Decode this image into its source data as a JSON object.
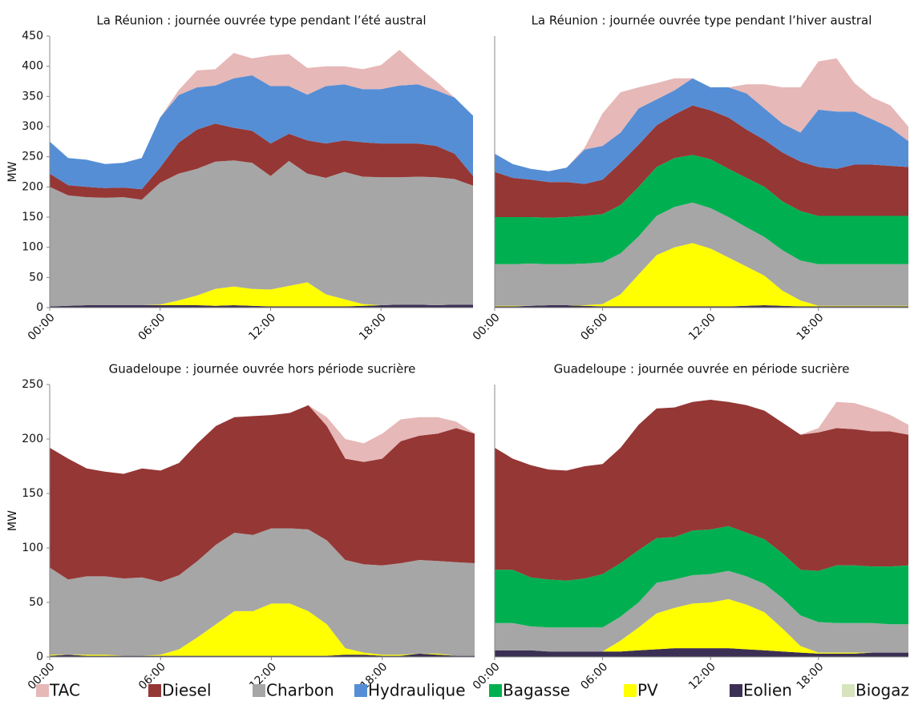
{
  "legend": [
    {
      "name": "TAC",
      "color": "#e6b8b7"
    },
    {
      "name": "Diesel",
      "color": "#953735"
    },
    {
      "name": "Charbon",
      "color": "#a6a6a6"
    },
    {
      "name": "Hydraulique",
      "color": "#558ed5"
    },
    {
      "name": "Bagasse",
      "color": "#00b050"
    },
    {
      "name": "PV",
      "color": "#ffff00"
    },
    {
      "name": "Eolien",
      "color": "#3b2f54"
    },
    {
      "name": "Biogaz",
      "color": "#d7e4bd"
    }
  ],
  "chart_data": [
    {
      "type": "stacked_area",
      "title": "La Réunion : journée ouvrée type pendant l’été austral",
      "ylabel": "MW",
      "x": [
        0,
        1,
        2,
        3,
        4,
        5,
        6,
        7,
        8,
        9,
        10,
        11,
        12,
        13,
        14,
        15,
        16,
        17,
        18,
        19,
        20,
        21,
        22,
        23
      ],
      "xlim": [
        0,
        23
      ],
      "xticks": [
        {
          "value": 0,
          "label": "00:00"
        },
        {
          "value": 6,
          "label": "06:00"
        },
        {
          "value": 12,
          "label": "12:00"
        },
        {
          "value": 18,
          "label": "18:00"
        }
      ],
      "ylim": [
        0,
        450
      ],
      "yticks": [
        0,
        50,
        100,
        150,
        200,
        250,
        300,
        350,
        400,
        450
      ],
      "series": [
        {
          "name": "Eolien",
          "values": [
            2,
            3,
            4,
            4,
            4,
            4,
            4,
            4,
            4,
            3,
            4,
            3,
            2,
            2,
            2,
            2,
            2,
            3,
            4,
            5,
            5,
            4,
            5,
            5
          ]
        },
        {
          "name": "PV",
          "values": [
            0,
            0,
            0,
            0,
            0,
            0,
            1,
            8,
            16,
            28,
            31,
            28,
            28,
            34,
            40,
            20,
            12,
            3,
            0,
            0,
            0,
            0,
            0,
            0
          ]
        },
        {
          "name": "Charbon",
          "values": [
            198,
            183,
            179,
            178,
            179,
            175,
            202,
            210,
            210,
            211,
            209,
            209,
            188,
            207,
            180,
            193,
            211,
            211,
            212,
            211,
            212,
            212,
            208,
            197
          ]
        },
        {
          "name": "Diesel",
          "values": [
            22,
            17,
            17,
            16,
            16,
            17,
            25,
            51,
            65,
            63,
            54,
            53,
            54,
            45,
            55,
            57,
            52,
            57,
            56,
            56,
            55,
            52,
            42,
            16
          ]
        },
        {
          "name": "Hydraulique",
          "values": [
            53,
            45,
            45,
            40,
            41,
            52,
            83,
            79,
            70,
            63,
            82,
            92,
            95,
            79,
            76,
            95,
            93,
            88,
            90,
            96,
            98,
            92,
            93,
            100
          ]
        },
        {
          "name": "TAC",
          "values": [
            0,
            0,
            0,
            0,
            0,
            0,
            0,
            8,
            28,
            27,
            42,
            28,
            51,
            53,
            44,
            33,
            30,
            33,
            40,
            59,
            30,
            15,
            0,
            0
          ]
        }
      ]
    },
    {
      "type": "stacked_area",
      "title": "La Réunion : journée ouvrée type pendant l’hiver austral",
      "x": [
        0,
        1,
        2,
        3,
        4,
        5,
        6,
        7,
        8,
        9,
        10,
        11,
        12,
        13,
        14,
        15,
        16,
        17,
        18,
        19,
        20,
        21,
        22,
        23
      ],
      "xlim": [
        0,
        23
      ],
      "xticks": [
        {
          "value": 0,
          "label": "00:00"
        },
        {
          "value": 6,
          "label": "06:00"
        },
        {
          "value": 12,
          "label": "12:00"
        },
        {
          "value": 18,
          "label": "18:00"
        }
      ],
      "ylim": [
        0,
        450
      ],
      "series": [
        {
          "name": "Eolien",
          "values": [
            2,
            2,
            3,
            4,
            4,
            3,
            2,
            2,
            2,
            2,
            2,
            2,
            2,
            2,
            3,
            4,
            3,
            2,
            2,
            2,
            2,
            2,
            2,
            2
          ]
        },
        {
          "name": "PV",
          "values": [
            1,
            1,
            0,
            0,
            0,
            1,
            4,
            20,
            53,
            85,
            98,
            105,
            96,
            81,
            65,
            49,
            25,
            10,
            1,
            1,
            1,
            1,
            1,
            1
          ]
        },
        {
          "name": "Charbon",
          "values": [
            69,
            69,
            70,
            68,
            68,
            69,
            69,
            68,
            63,
            65,
            67,
            67,
            67,
            67,
            65,
            64,
            67,
            66,
            69,
            69,
            69,
            69,
            69,
            69
          ]
        },
        {
          "name": "Bagasse",
          "values": [
            78,
            78,
            77,
            77,
            78,
            79,
            80,
            80,
            82,
            81,
            81,
            79,
            81,
            80,
            82,
            83,
            81,
            82,
            80,
            80,
            80,
            80,
            80,
            80
          ]
        },
        {
          "name": "Diesel",
          "values": [
            75,
            65,
            62,
            59,
            58,
            53,
            57,
            70,
            70,
            69,
            72,
            82,
            81,
            85,
            80,
            78,
            81,
            82,
            81,
            78,
            85,
            85,
            83,
            81
          ]
        },
        {
          "name": "Hydraulique",
          "values": [
            30,
            23,
            18,
            18,
            24,
            57,
            56,
            50,
            60,
            43,
            40,
            45,
            38,
            50,
            60,
            52,
            48,
            48,
            95,
            95,
            88,
            75,
            63,
            43
          ]
        },
        {
          "name": "TAC",
          "values": [
            0,
            0,
            0,
            0,
            0,
            3,
            54,
            67,
            35,
            27,
            20,
            0,
            0,
            0,
            15,
            40,
            60,
            75,
            80,
            88,
            47,
            36,
            37,
            24
          ]
        }
      ]
    },
    {
      "type": "stacked_area",
      "title": "Guadeloupe : journée ouvrée hors période sucrière",
      "ylabel": "MW",
      "x": [
        0,
        1,
        2,
        3,
        4,
        5,
        6,
        7,
        8,
        9,
        10,
        11,
        12,
        13,
        14,
        15,
        16,
        17,
        18,
        19,
        20,
        21,
        22,
        23
      ],
      "xlim": [
        0,
        23
      ],
      "xticks": [
        {
          "value": 0,
          "label": "00:00"
        },
        {
          "value": 6,
          "label": "06:00"
        },
        {
          "value": 12,
          "label": "12:00"
        },
        {
          "value": 18,
          "label": "18:00"
        }
      ],
      "ylim": [
        0,
        250
      ],
      "yticks": [
        0,
        50,
        100,
        150,
        200,
        250
      ],
      "series": [
        {
          "name": "Eolien",
          "values": [
            1,
            2,
            1,
            1,
            1,
            1,
            1,
            1,
            1,
            1,
            1,
            1,
            1,
            1,
            1,
            1,
            2,
            2,
            1,
            1,
            3,
            2,
            1,
            1
          ]
        },
        {
          "name": "PV",
          "values": [
            1,
            0,
            1,
            1,
            0,
            0,
            1,
            6,
            17,
            29,
            41,
            41,
            48,
            48,
            41,
            29,
            6,
            2,
            1,
            1,
            0,
            1,
            0,
            0
          ]
        },
        {
          "name": "Charbon",
          "values": [
            80,
            69,
            72,
            72,
            71,
            72,
            67,
            68,
            70,
            73,
            72,
            70,
            69,
            69,
            75,
            77,
            81,
            81,
            82,
            84,
            86,
            85,
            86,
            85
          ]
        },
        {
          "name": "Diesel",
          "values": [
            110,
            111,
            99,
            96,
            96,
            100,
            102,
            103,
            108,
            109,
            106,
            109,
            104,
            106,
            114,
            105,
            93,
            94,
            98,
            112,
            114,
            117,
            123,
            119
          ]
        },
        {
          "name": "TAC",
          "values": [
            0,
            0,
            0,
            0,
            0,
            0,
            0,
            0,
            0,
            0,
            0,
            0,
            0,
            0,
            0,
            8,
            18,
            17,
            23,
            20,
            17,
            15,
            6,
            0
          ]
        }
      ]
    },
    {
      "type": "stacked_area",
      "title": "Guadeloupe : journée ouvrée en période sucrière",
      "x": [
        0,
        1,
        2,
        3,
        4,
        5,
        6,
        7,
        8,
        9,
        10,
        11,
        12,
        13,
        14,
        15,
        16,
        17,
        18,
        19,
        20,
        21,
        22,
        23
      ],
      "xlim": [
        0,
        23
      ],
      "xticks": [
        {
          "value": 0,
          "label": "00:00"
        },
        {
          "value": 6,
          "label": "06:00"
        },
        {
          "value": 12,
          "label": "12:00"
        },
        {
          "value": 18,
          "label": "18:00"
        }
      ],
      "ylim": [
        0,
        250
      ],
      "series": [
        {
          "name": "Eolien",
          "values": [
            6,
            6,
            6,
            5,
            5,
            5,
            5,
            5,
            6,
            7,
            8,
            8,
            8,
            8,
            7,
            6,
            5,
            4,
            3,
            3,
            3,
            4,
            4,
            4
          ]
        },
        {
          "name": "PV",
          "values": [
            0,
            0,
            0,
            0,
            0,
            0,
            0,
            10,
            21,
            33,
            37,
            41,
            42,
            45,
            41,
            35,
            21,
            6,
            1,
            1,
            1,
            0,
            0,
            0
          ]
        },
        {
          "name": "Charbon",
          "values": [
            25,
            25,
            22,
            22,
            22,
            22,
            22,
            22,
            23,
            28,
            26,
            26,
            26,
            26,
            26,
            26,
            28,
            28,
            28,
            27,
            27,
            27,
            26,
            26
          ]
        },
        {
          "name": "Bagasse",
          "values": [
            49,
            49,
            45,
            44,
            43,
            45,
            49,
            49,
            48,
            41,
            39,
            41,
            41,
            41,
            40,
            41,
            41,
            42,
            47,
            53,
            53,
            52,
            53,
            54
          ]
        },
        {
          "name": "Diesel",
          "values": [
            112,
            102,
            103,
            101,
            101,
            103,
            101,
            106,
            115,
            119,
            119,
            118,
            119,
            114,
            117,
            118,
            120,
            124,
            127,
            126,
            125,
            124,
            124,
            120
          ]
        },
        {
          "name": "TAC",
          "values": [
            0,
            0,
            0,
            0,
            0,
            0,
            0,
            0,
            0,
            0,
            0,
            0,
            0,
            0,
            0,
            0,
            0,
            0,
            4,
            24,
            24,
            21,
            15,
            9
          ]
        }
      ]
    }
  ]
}
